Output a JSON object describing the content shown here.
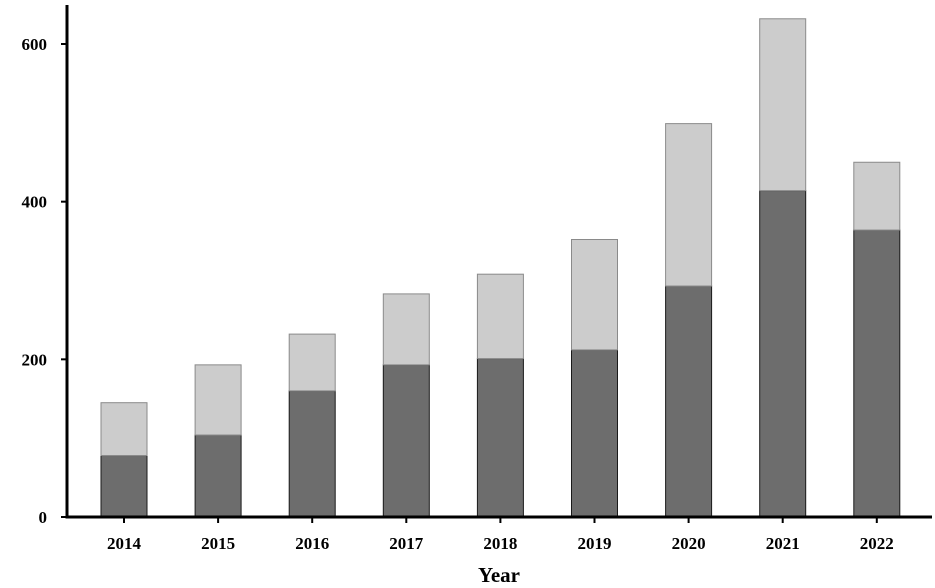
{
  "chart_data": {
    "type": "bar",
    "stacked": true,
    "title": "",
    "xlabel": "Year",
    "ylabel": "",
    "ylim": [
      0,
      600
    ],
    "yticks": [
      "0",
      "200",
      "400",
      "600"
    ],
    "categories": [
      "2014",
      "2015",
      "2016",
      "2017",
      "2018",
      "2019",
      "2020",
      "2021",
      "2022"
    ],
    "series": [
      {
        "color": "#6d6d6d",
        "values": [
          78,
          104,
          160,
          193,
          201,
          212,
          293,
          414,
          364
        ]
      },
      {
        "color": "#cccccc",
        "values": [
          67,
          89,
          72,
          90,
          107,
          140,
          206,
          218,
          86
        ]
      }
    ],
    "grid": false,
    "legend": "none"
  }
}
